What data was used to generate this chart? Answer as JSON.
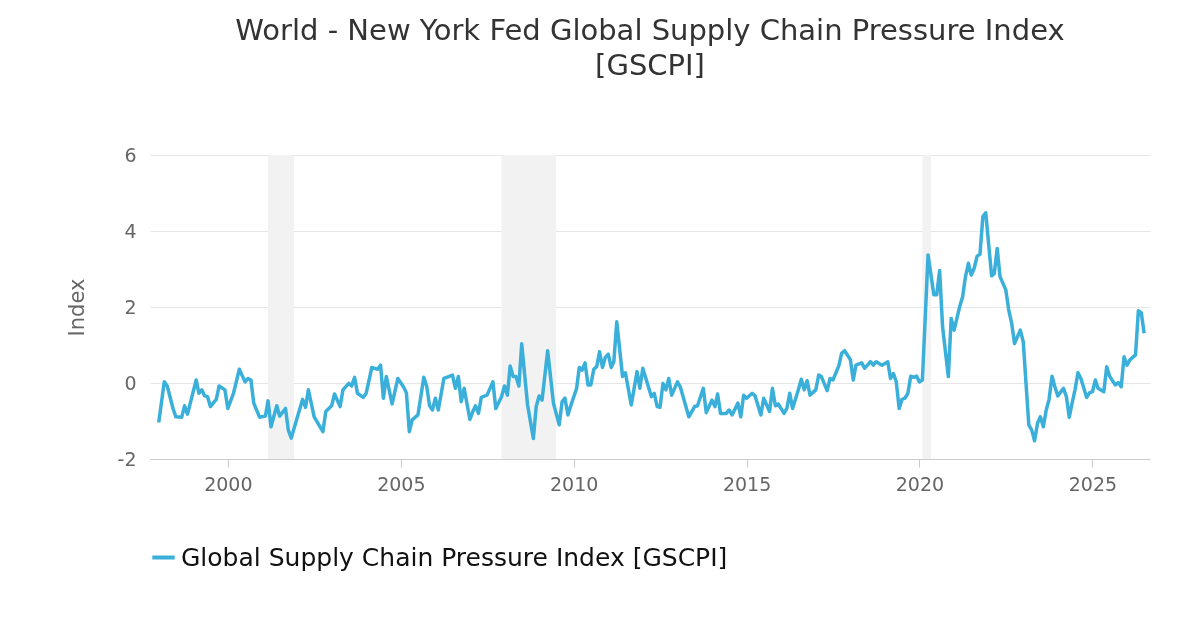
{
  "chart_data": {
    "type": "line",
    "title": "World - New York Fed Global Supply Chain Pressure Index [GSCPI]",
    "ylabel": "Index",
    "x": [
      "1998-01",
      "1998-03",
      "1998-04",
      "1998-06",
      "1998-07",
      "1998-09",
      "1998-10",
      "1998-11",
      "1999-02",
      "1999-03",
      "1999-04",
      "1999-05",
      "1999-06",
      "1999-07",
      "1999-09",
      "1999-10",
      "1999-12",
      "2000-01",
      "2000-03",
      "2000-05",
      "2000-07",
      "2000-08",
      "2000-09",
      "2000-10",
      "2000-12",
      "2001-02",
      "2001-03",
      "2001-04",
      "2001-06",
      "2001-07",
      "2001-09",
      "2001-10",
      "2001-11",
      "2002-01",
      "2002-03",
      "2002-04",
      "2002-05",
      "2002-07",
      "2002-10",
      "2002-11",
      "2003-01",
      "2003-02",
      "2003-04",
      "2003-05",
      "2003-07",
      "2003-08",
      "2003-09",
      "2003-10",
      "2003-12",
      "2004-01",
      "2004-03",
      "2004-05",
      "2004-06",
      "2004-07",
      "2004-08",
      "2004-10",
      "2004-12",
      "2005-02",
      "2005-03",
      "2005-04",
      "2005-05",
      "2005-07",
      "2005-09",
      "2005-10",
      "2005-11",
      "2005-12",
      "2006-01",
      "2006-02",
      "2006-04",
      "2006-05",
      "2006-07",
      "2006-08",
      "2006-09",
      "2006-10",
      "2006-11",
      "2007-01",
      "2007-02",
      "2007-03",
      "2007-04",
      "2007-05",
      "2007-07",
      "2007-09",
      "2007-10",
      "2007-12",
      "2008-01",
      "2008-02",
      "2008-03",
      "2008-04",
      "2008-05",
      "2008-06",
      "2008-07",
      "2008-09",
      "2008-11",
      "2008-12",
      "2009-01",
      "2009-02",
      "2009-04",
      "2009-06",
      "2009-08",
      "2009-09",
      "2009-10",
      "2009-11",
      "2009-12",
      "2010-02",
      "2010-03",
      "2010-04",
      "2010-05",
      "2010-06",
      "2010-07",
      "2010-08",
      "2010-09",
      "2010-10",
      "2010-11",
      "2010-12",
      "2011-01",
      "2011-02",
      "2011-03",
      "2011-04",
      "2011-06",
      "2011-07",
      "2011-09",
      "2011-11",
      "2011-12",
      "2012-01",
      "2012-04",
      "2012-05",
      "2012-06",
      "2012-07",
      "2012-08",
      "2012-09",
      "2012-10",
      "2012-11",
      "2013-01",
      "2013-02",
      "2013-05",
      "2013-07",
      "2013-08",
      "2013-10",
      "2013-11",
      "2014-01",
      "2014-02",
      "2014-03",
      "2014-04",
      "2014-06",
      "2014-07",
      "2014-08",
      "2014-10",
      "2014-11",
      "2014-12",
      "2015-01",
      "2015-03",
      "2015-04",
      "2015-06",
      "2015-07",
      "2015-09",
      "2015-10",
      "2015-11",
      "2015-12",
      "2016-02",
      "2016-03",
      "2016-04",
      "2016-05",
      "2016-07",
      "2016-08",
      "2016-09",
      "2016-10",
      "2016-11",
      "2017-01",
      "2017-02",
      "2017-03",
      "2017-05",
      "2017-06",
      "2017-07",
      "2017-09",
      "2017-10",
      "2017-11",
      "2018-01",
      "2018-02",
      "2018-03",
      "2018-05",
      "2018-06",
      "2018-07",
      "2018-08",
      "2018-09",
      "2018-10",
      "2018-12",
      "2019-02",
      "2019-03",
      "2019-04",
      "2019-05",
      "2019-06",
      "2019-07",
      "2019-08",
      "2019-09",
      "2019-10",
      "2019-11",
      "2019-12",
      "2020-01",
      "2020-02",
      "2020-04",
      "2020-06",
      "2020-07",
      "2020-08",
      "2020-09",
      "2020-11",
      "2020-12",
      "2021-01",
      "2021-03",
      "2021-04",
      "2021-05",
      "2021-06",
      "2021-07",
      "2021-08",
      "2021-09",
      "2021-10",
      "2021-11",
      "2021-12",
      "2022-02",
      "2022-03",
      "2022-04",
      "2022-05",
      "2022-07",
      "2022-08",
      "2022-09",
      "2022-10",
      "2022-11",
      "2022-12",
      "2023-01",
      "2023-03",
      "2023-04",
      "2023-05",
      "2023-06",
      "2023-07",
      "2023-08",
      "2023-09",
      "2023-10",
      "2023-11",
      "2023-12",
      "2024-01",
      "2024-03",
      "2024-04",
      "2024-05",
      "2024-06",
      "2024-07",
      "2024-08",
      "2024-09",
      "2024-11",
      "2024-12",
      "2025-01",
      "2025-02",
      "2025-03",
      "2025-05",
      "2025-06",
      "2025-07",
      "2025-08",
      "2025-09",
      "2025-10",
      "2025-11",
      "2025-12",
      "2026-01",
      "2026-02",
      "2026-04",
      "2026-05",
      "2026-06",
      "2026-07"
    ],
    "series": [
      {
        "name": "Global Supply Chain Pressure Index [GSCPI]",
        "color": "#3aafda",
        "values": [
          -1.04,
          0.03,
          -0.08,
          -0.67,
          -0.89,
          -0.9,
          -0.6,
          -0.82,
          0.08,
          -0.27,
          -0.18,
          -0.34,
          -0.36,
          -0.62,
          -0.43,
          -0.08,
          -0.18,
          -0.67,
          -0.27,
          0.36,
          0.03,
          0.12,
          0.08,
          -0.53,
          -0.9,
          -0.87,
          -0.47,
          -1.15,
          -0.6,
          -0.87,
          -0.67,
          -1.24,
          -1.45,
          -0.93,
          -0.43,
          -0.64,
          -0.18,
          -0.89,
          -1.28,
          -0.75,
          -0.6,
          -0.29,
          -0.62,
          -0.18,
          -0.01,
          -0.08,
          0.15,
          -0.27,
          -0.38,
          -0.27,
          0.41,
          0.36,
          0.47,
          -0.4,
          0.17,
          -0.55,
          0.12,
          -0.11,
          -0.26,
          -1.28,
          -0.97,
          -0.84,
          0.15,
          -0.08,
          -0.6,
          -0.71,
          -0.4,
          -0.71,
          0.12,
          0.15,
          0.21,
          -0.14,
          0.17,
          -0.49,
          -0.14,
          -0.96,
          -0.75,
          -0.6,
          -0.8,
          -0.38,
          -0.32,
          0.03,
          -0.67,
          -0.36,
          -0.08,
          -0.32,
          0.45,
          0.17,
          0.17,
          -0.08,
          1.03,
          -0.58,
          -1.46,
          -0.62,
          -0.34,
          -0.45,
          0.85,
          -0.53,
          -1.1,
          -0.49,
          -0.4,
          -0.84,
          -0.6,
          -0.14,
          0.41,
          0.34,
          0.53,
          -0.05,
          -0.05,
          0.36,
          0.43,
          0.82,
          0.41,
          0.68,
          0.76,
          0.41,
          0.56,
          1.61,
          0.17,
          0.27,
          -0.58,
          0.3,
          -0.14,
          0.39,
          -0.36,
          -0.27,
          -0.62,
          -0.64,
          -0.01,
          -0.18,
          0.12,
          -0.32,
          0.03,
          -0.11,
          -0.89,
          -0.62,
          -0.6,
          -0.14,
          -0.78,
          -0.45,
          -0.62,
          -0.29,
          -0.8,
          -0.8,
          -0.71,
          -0.84,
          -0.53,
          -0.89,
          -0.32,
          -0.4,
          -0.27,
          -0.34,
          -0.84,
          -0.4,
          -0.75,
          -0.14,
          -0.6,
          -0.55,
          -0.8,
          -0.67,
          -0.27,
          -0.67,
          -0.18,
          0.1,
          -0.18,
          0.06,
          -0.32,
          -0.18,
          0.21,
          0.17,
          -0.2,
          0.12,
          0.08,
          0.45,
          0.78,
          0.85,
          0.62,
          0.08,
          0.47,
          0.53,
          0.39,
          0.47,
          0.56,
          0.47,
          0.56,
          0.47,
          0.56,
          0.12,
          0.25,
          0.03,
          -0.67,
          -0.43,
          -0.4,
          -0.27,
          0.18,
          0.15,
          0.18,
          0.03,
          0.08,
          3.37,
          2.32,
          2.32,
          2.96,
          1.48,
          0.17,
          1.7,
          1.39,
          2.01,
          2.27,
          2.8,
          3.15,
          2.84,
          3.02,
          3.34,
          3.39,
          4.38,
          4.48,
          2.82,
          2.88,
          3.54,
          2.8,
          2.45,
          1.92,
          1.57,
          1.04,
          1.22,
          1.39,
          1.09,
          -1.1,
          -1.24,
          -1.52,
          -1.06,
          -0.89,
          -1.15,
          -0.71,
          -0.43,
          0.18,
          -0.1,
          -0.34,
          -0.14,
          -0.36,
          -0.9,
          -0.52,
          -0.18,
          0.27,
          0.12,
          -0.38,
          -0.26,
          -0.23,
          0.08,
          -0.14,
          -0.23,
          0.43,
          0.18,
          0.06,
          -0.05,
          0.01,
          -0.1,
          0.69,
          0.47,
          0.61,
          0.74,
          1.9,
          1.85,
          1.31
        ]
      }
    ],
    "xlim": [
      "1997-10",
      "2026-09"
    ],
    "xticks": [
      "2000",
      "2005",
      "2010",
      "2015",
      "2020",
      "2025"
    ],
    "ylim": [
      -2,
      6
    ],
    "yticks": [
      -2,
      0,
      2,
      4,
      6
    ],
    "grid": "y",
    "legend": "bottom",
    "bands": [
      {
        "axis": "x",
        "from": "2001-03",
        "to": "2001-12",
        "color": "#f2f2f2"
      },
      {
        "axis": "x",
        "from": "2007-12",
        "to": "2009-07",
        "color": "#f2f2f2"
      },
      {
        "axis": "x",
        "from": "2020-02",
        "to": "2020-05",
        "color": "#f2f2f2"
      }
    ]
  }
}
